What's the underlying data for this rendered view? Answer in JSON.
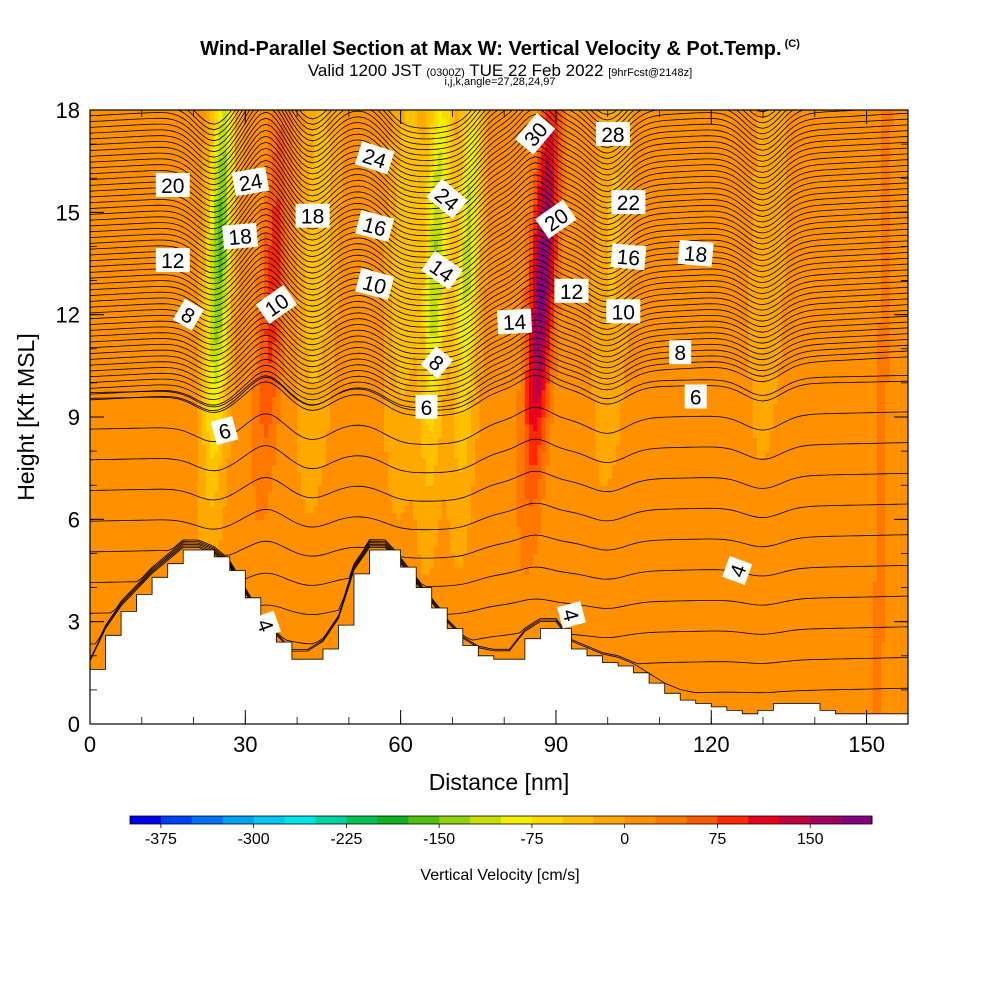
{
  "header": {
    "title": "Wind-Parallel Section at Max W: Vertical Velocity & Pot.Temp.",
    "copyright": "(C)",
    "valid_prefix": "Valid 1200 JST",
    "utc": "(0300Z)",
    "valid_date": "TUE 22 Feb 2022",
    "forecast": "[9hrFcst@2148z]",
    "indices": "i,j,k,angle=27,28,24,97"
  },
  "chart_data": {
    "type": "heatmap",
    "xlabel": "Distance [nm]",
    "ylabel": "Height [Kft MSL]",
    "xlim": [
      0,
      158
    ],
    "ylim": [
      0,
      18
    ],
    "x_ticks": [
      0,
      30,
      60,
      90,
      120,
      150
    ],
    "y_ticks": [
      0,
      3,
      6,
      9,
      12,
      15,
      18
    ],
    "colorbar": {
      "title": "Vertical Velocity [cm/s]",
      "levels": [
        -400,
        -375,
        -350,
        -325,
        -300,
        -275,
        -250,
        -225,
        -200,
        -175,
        -150,
        -125,
        -100,
        -75,
        -50,
        -25,
        0,
        25,
        50,
        75,
        100,
        125,
        150,
        175,
        200
      ],
      "tick_values": [
        -375,
        -300,
        -225,
        -150,
        -75,
        0,
        75,
        150
      ],
      "colors": [
        "#0000ee",
        "#0040f5",
        "#0070f5",
        "#00a0f5",
        "#00c8f5",
        "#00e6e6",
        "#00d2a0",
        "#00c050",
        "#10b020",
        "#50c010",
        "#90d010",
        "#c8e000",
        "#f0f000",
        "#ffd800",
        "#ffc000",
        "#ffa800",
        "#ff9000",
        "#ff7800",
        "#ff5a00",
        "#ff2800",
        "#e80020",
        "#c00040",
        "#a00060",
        "#800080"
      ]
    },
    "background_w": 10,
    "updrafts": [
      {
        "x": 34,
        "w": 80
      },
      {
        "x": 54,
        "w": 5
      },
      {
        "x": 86,
        "w": 175
      },
      {
        "x": 108,
        "w": 5
      },
      {
        "x": 119,
        "w": 12
      },
      {
        "x": 143,
        "w": 10
      },
      {
        "x": 153,
        "w": 20
      }
    ],
    "downdrafts": [
      {
        "x": 24,
        "w": -170
      },
      {
        "x": 43,
        "w": -55
      },
      {
        "x": 60,
        "w": -60
      },
      {
        "x": 66,
        "w": -135
      },
      {
        "x": 72,
        "w": -120
      },
      {
        "x": 100,
        "w": -40
      },
      {
        "x": 130,
        "w": -30
      }
    ],
    "terrain": {
      "x": [
        0,
        3,
        6,
        9,
        12,
        15,
        18,
        21,
        24,
        27,
        30,
        33,
        36,
        39,
        42,
        45,
        48,
        51,
        54,
        57,
        60,
        63,
        66,
        69,
        72,
        75,
        78,
        81,
        84,
        87,
        90,
        93,
        96,
        99,
        102,
        105,
        108,
        111,
        114,
        117,
        120,
        123,
        126,
        129,
        132,
        135,
        138,
        141,
        144,
        147,
        150,
        153,
        156,
        158
      ],
      "height": [
        1.6,
        2.6,
        3.3,
        3.8,
        4.3,
        4.7,
        5.1,
        5.1,
        4.9,
        4.5,
        3.7,
        2.9,
        2.4,
        1.9,
        1.9,
        2.2,
        2.9,
        4.4,
        5.1,
        5.1,
        4.6,
        4.0,
        3.4,
        2.8,
        2.3,
        2.0,
        1.9,
        1.9,
        2.5,
        2.8,
        2.8,
        2.2,
        2.0,
        1.8,
        1.7,
        1.5,
        1.2,
        0.9,
        0.7,
        0.6,
        0.5,
        0.4,
        0.3,
        0.4,
        0.6,
        0.6,
        0.6,
        0.4,
        0.3,
        0.3,
        0.3,
        0.3,
        0.3,
        0.3
      ]
    },
    "theta_labels": [
      {
        "text": "20",
        "x": 16,
        "y": 15.8,
        "angle": 0
      },
      {
        "text": "24",
        "x": 31,
        "y": 15.9,
        "angle": -10
      },
      {
        "text": "18",
        "x": 29,
        "y": 14.3,
        "angle": -5
      },
      {
        "text": "18",
        "x": 43,
        "y": 14.9,
        "angle": 0
      },
      {
        "text": "24",
        "x": 55,
        "y": 16.6,
        "angle": 18
      },
      {
        "text": "16",
        "x": 55,
        "y": 14.6,
        "angle": 15
      },
      {
        "text": "10",
        "x": 55,
        "y": 12.9,
        "angle": 15
      },
      {
        "text": "24",
        "x": 69,
        "y": 15.4,
        "angle": 40
      },
      {
        "text": "14",
        "x": 68,
        "y": 13.3,
        "angle": 35
      },
      {
        "text": "8",
        "x": 67,
        "y": 10.6,
        "angle": 40
      },
      {
        "text": "6",
        "x": 65,
        "y": 9.3,
        "angle": 0
      },
      {
        "text": "30",
        "x": 86,
        "y": 17.3,
        "angle": -50
      },
      {
        "text": "20",
        "x": 90,
        "y": 14.8,
        "angle": -35
      },
      {
        "text": "28",
        "x": 101,
        "y": 17.3,
        "angle": 0
      },
      {
        "text": "22",
        "x": 104,
        "y": 15.3,
        "angle": 0
      },
      {
        "text": "16",
        "x": 104,
        "y": 13.7,
        "angle": 5
      },
      {
        "text": "12",
        "x": 93,
        "y": 12.7,
        "angle": 0
      },
      {
        "text": "14",
        "x": 82,
        "y": 11.8,
        "angle": -3
      },
      {
        "text": "10",
        "x": 103,
        "y": 12.1,
        "angle": 0
      },
      {
        "text": "18",
        "x": 117,
        "y": 13.8,
        "angle": 5
      },
      {
        "text": "8",
        "x": 114,
        "y": 10.9,
        "angle": 0
      },
      {
        "text": "6",
        "x": 117,
        "y": 9.6,
        "angle": 0
      },
      {
        "text": "12",
        "x": 16,
        "y": 13.6,
        "angle": 0
      },
      {
        "text": "8",
        "x": 19,
        "y": 12.0,
        "angle": 30
      },
      {
        "text": "10",
        "x": 36,
        "y": 12.3,
        "angle": -35
      },
      {
        "text": "6",
        "x": 26,
        "y": 8.6,
        "angle": -15
      },
      {
        "text": "4",
        "x": 34,
        "y": 2.9,
        "angle": 70
      },
      {
        "text": "4",
        "x": 93,
        "y": 3.2,
        "angle": 75
      },
      {
        "text": "4",
        "x": 125,
        "y": 4.5,
        "angle": -70
      }
    ]
  }
}
